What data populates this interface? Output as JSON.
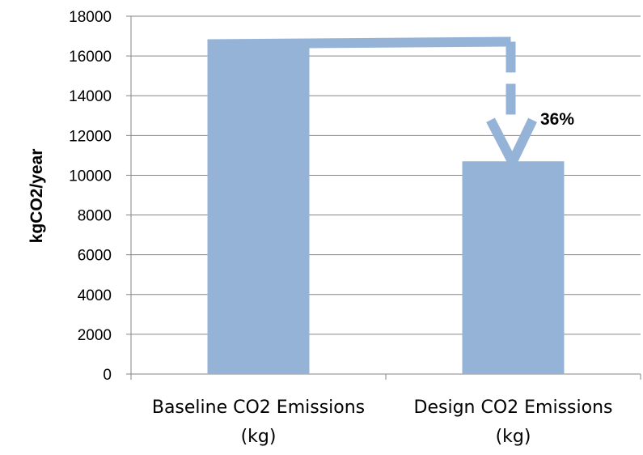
{
  "chart_data": {
    "type": "bar",
    "categories": [
      [
        "Baseline CO2 Emissions",
        "(kg)"
      ],
      [
        "Design CO2 Emissions",
        "(kg)"
      ]
    ],
    "values": [
      16800,
      10700
    ],
    "title": "",
    "xlabel": "",
    "ylabel": "kgCO2/year",
    "ylim": [
      0,
      18000
    ],
    "yticks": [
      0,
      2000,
      4000,
      6000,
      8000,
      10000,
      12000,
      14000,
      16000,
      18000
    ],
    "grid": true,
    "legend": "none",
    "bar_color": "#95b3d7",
    "annotation": {
      "text": "36%",
      "arrow": "dashed arrow from Baseline bar top to Design bar top"
    }
  }
}
